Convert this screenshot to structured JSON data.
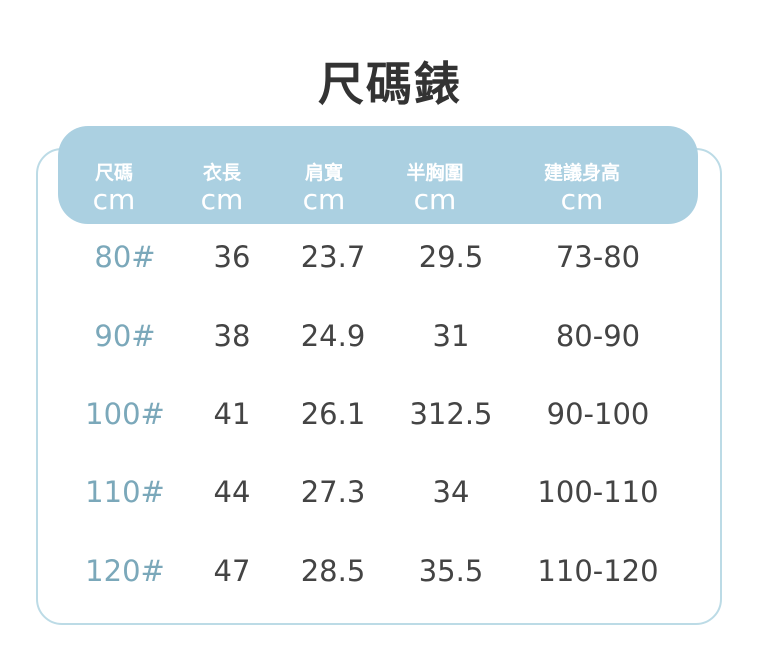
{
  "title": "尺碼錶",
  "colors": {
    "header_band": "#abd0e1",
    "outline": "#bcdbe6",
    "size_text": "#7ba8ba",
    "value_text": "#444444"
  },
  "headers": [
    {
      "label": "尺碼",
      "unit": "cm"
    },
    {
      "label": "衣長",
      "unit": "cm"
    },
    {
      "label": "肩寬",
      "unit": "cm"
    },
    {
      "label": "半胸圍",
      "unit": "cm"
    },
    {
      "label": "建議身高",
      "unit": "cm"
    }
  ],
  "rows": [
    [
      "80#",
      "36",
      "23.7",
      "29.5",
      "73-80"
    ],
    [
      "90#",
      "38",
      "24.9",
      "31",
      "80-90"
    ],
    [
      "100#",
      "41",
      "26.1",
      "312.5",
      "90-100"
    ],
    [
      "110#",
      "44",
      "27.3",
      "34",
      "100-110"
    ],
    [
      "120#",
      "47",
      "28.5",
      "35.5",
      "110-120"
    ]
  ]
}
